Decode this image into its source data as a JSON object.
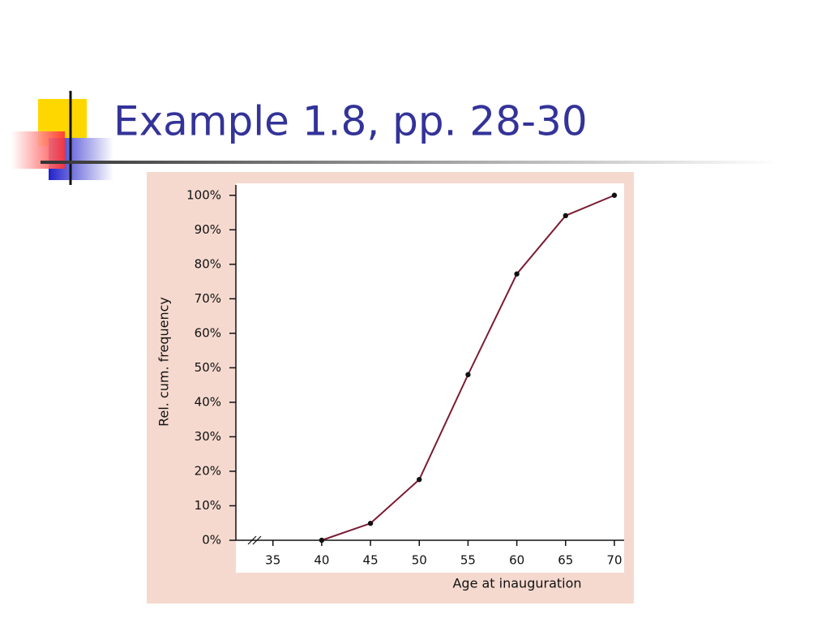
{
  "slide": {
    "title": "Example 1.8, pp. 28-30"
  },
  "chart_data": {
    "type": "line",
    "x_label": "Age at inauguration",
    "y_label": "Rel. cum. frequency",
    "x": [
      40,
      45,
      50,
      55,
      60,
      65,
      70
    ],
    "values": [
      0,
      4.9,
      17.6,
      48,
      77.2,
      94.1,
      100
    ],
    "color": "#7a1c33",
    "xlim": [
      31.2,
      71
    ],
    "xticks": [
      35,
      40,
      45,
      50,
      55,
      60,
      65,
      70
    ],
    "ylim": [
      0,
      103
    ],
    "yticks": [
      {
        "value": 0,
        "label": "0%"
      },
      {
        "value": 10,
        "label": "10%"
      },
      {
        "value": 20,
        "label": "20%"
      },
      {
        "value": 30,
        "label": "30%"
      },
      {
        "value": 40,
        "label": "40%"
      },
      {
        "value": 50,
        "label": "50%"
      },
      {
        "value": 60,
        "label": "60%"
      },
      {
        "value": 70,
        "label": "70%"
      },
      {
        "value": 80,
        "label": "80%"
      },
      {
        "value": 90,
        "label": "90%"
      },
      {
        "value": 100,
        "label": "100%"
      }
    ]
  }
}
